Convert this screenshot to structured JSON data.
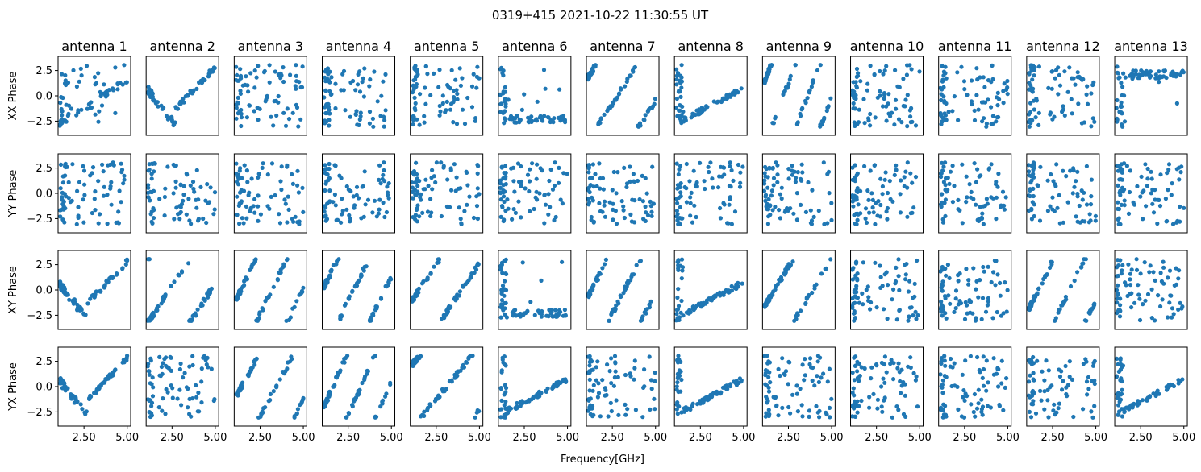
{
  "chart_data": {
    "type": "scatter",
    "suptitle": "0319+415 2021-10-22 11:30:55 UT",
    "xlabel": "Frequency[GHz]",
    "antennas": [
      "antenna 1",
      "antenna 2",
      "antenna 3",
      "antenna 4",
      "antenna 5",
      "antenna 6",
      "antenna 7",
      "antenna 8",
      "antenna 9",
      "antenna 10",
      "antenna 11",
      "antenna 12",
      "antenna 13"
    ],
    "rows": [
      "XX Phase",
      "YY Phase",
      "XY Phase",
      "YX Phase"
    ],
    "xlim": [
      1.0,
      5.2
    ],
    "ylim": [
      -3.9,
      3.9
    ],
    "xticks": [
      2.5,
      5.0
    ],
    "xtick_labels": [
      "2.50",
      "5.00"
    ],
    "yticks": [
      2.5,
      0.0,
      -2.5
    ],
    "ytick_labels": [
      "2.5",
      "0.0",
      "−2.5"
    ],
    "marker_color": "#1f77b4",
    "x_range": [
      1.1,
      5.0
    ],
    "n_points_per_panel": 80,
    "patterns": [
      [
        "mixed",
        "vee",
        "random",
        "random",
        "random",
        "flatlow",
        "wrap",
        "hump",
        "wrap",
        "random",
        "random",
        "random",
        "flathigh"
      ],
      [
        "random",
        "random",
        "random",
        "random",
        "random",
        "random",
        "random",
        "random",
        "random",
        "random",
        "random",
        "random",
        "random"
      ],
      [
        "vee",
        "wrap",
        "wrap",
        "wrap",
        "wrap",
        "flatlow",
        "wrap",
        "hump",
        "wrap",
        "random",
        "random",
        "wrap",
        "random"
      ],
      [
        "vee",
        "random",
        "wrap",
        "wrap",
        "wrap",
        "hump",
        "random",
        "hump",
        "random",
        "random",
        "random",
        "random",
        "hump"
      ]
    ]
  }
}
